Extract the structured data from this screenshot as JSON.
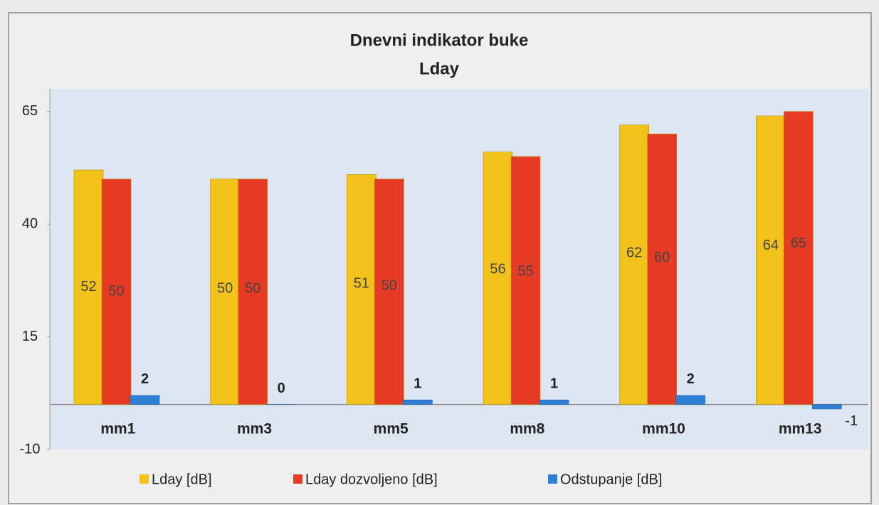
{
  "chart_data": {
    "type": "bar",
    "title": "Dnevni indikator buke",
    "subtitle": "Lday",
    "categories": [
      "mm1",
      "mm3",
      "mm5",
      "mm8",
      "mm10",
      "mm13"
    ],
    "series": [
      {
        "name": "Lday [dB]",
        "color": "#f2c21b",
        "values": [
          52,
          50,
          51,
          56,
          62,
          64
        ]
      },
      {
        "name": "Lday dozvoljeno [dB]",
        "color": "#e63a26",
        "values": [
          50,
          50,
          50,
          55,
          60,
          65
        ]
      },
      {
        "name": "Odstupanje [dB]",
        "color": "#2f7fd4",
        "values": [
          2,
          0,
          1,
          1,
          2,
          -1
        ]
      }
    ],
    "ylim": [
      -10,
      70
    ],
    "yticks": [
      -10,
      15,
      40,
      65
    ],
    "legend": "bottom"
  }
}
